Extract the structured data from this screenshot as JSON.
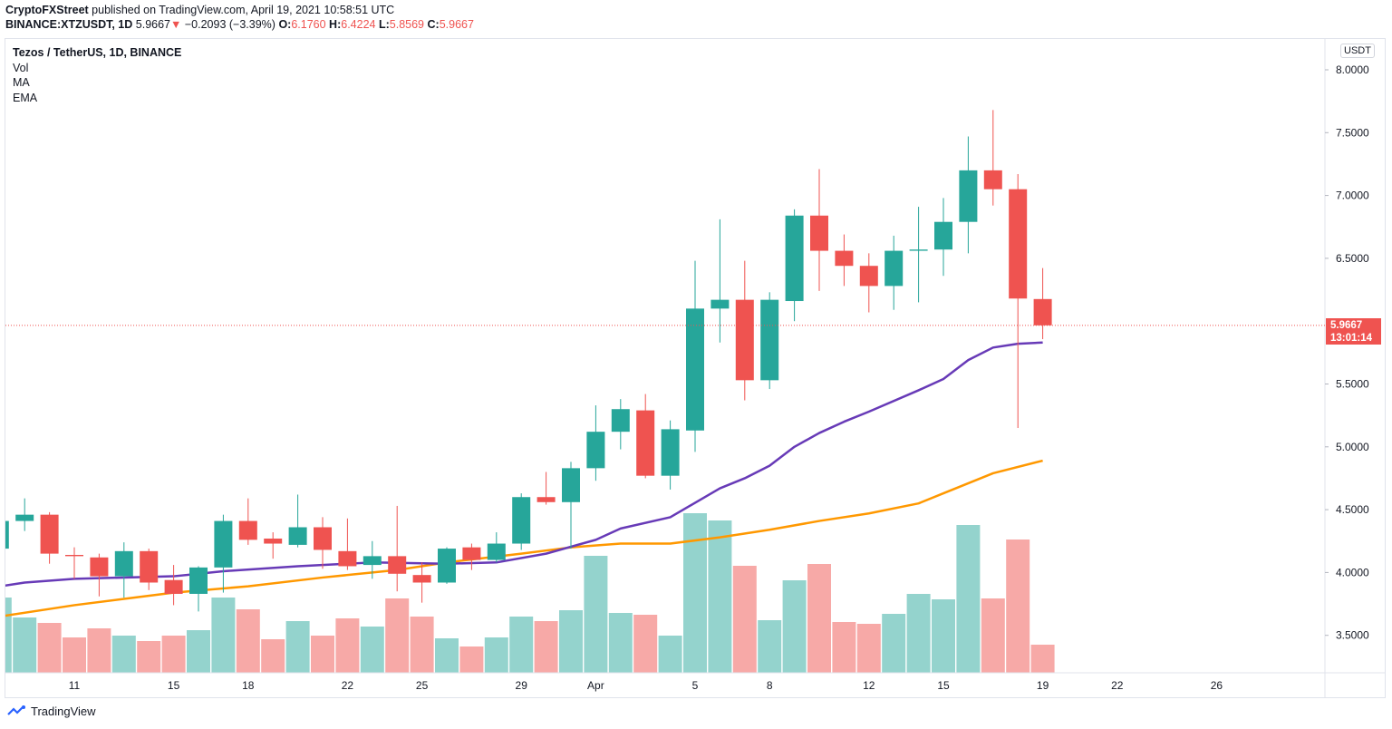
{
  "header": {
    "publisher": "CryptoFXStreet",
    "published_text": "published on TradingView.com, April 19, 2021 10:58:51 UTC",
    "symbol": "BINANCE:XTZUSDT, 1D",
    "last": "5.9667",
    "change": "−0.2093 (−3.39%)",
    "o_label": "O:",
    "o": "6.1760",
    "h_label": "H:",
    "h": "6.4224",
    "l_label": "L:",
    "l": "5.8569",
    "c_label": "C:",
    "c": "5.9667",
    "down_icon": "triangle-down-icon"
  },
  "legend": {
    "title": "Tezos / TetherUS, 1D, BINANCE",
    "vol": "Vol",
    "ma": "MA",
    "ema": "EMA"
  },
  "axis": {
    "currency": "USDT",
    "price_label": "5.9667",
    "countdown": "13:01:14"
  },
  "footer": {
    "brand": "TradingView"
  },
  "colors": {
    "up": "#26a69a",
    "down": "#ef5350",
    "vol_up": "#94d3cd",
    "vol_down": "#f7a9a7",
    "ma": "#673ab7",
    "ema": "#ff9800"
  },
  "chart_data": {
    "type": "candlestick",
    "ylim": [
      3.2,
      8.1
    ],
    "yticks": [
      "8.0000",
      "7.5000",
      "7.0000",
      "6.5000",
      "5.5000",
      "5.0000",
      "4.5000",
      "4.0000",
      "3.5000"
    ],
    "ytick_values": [
      8.0,
      7.5,
      7.0,
      6.5,
      5.5,
      5.0,
      4.5,
      4.0,
      3.5
    ],
    "xticks": [
      {
        "label": "11",
        "date": "Mar 11"
      },
      {
        "label": "15",
        "date": "Mar 15"
      },
      {
        "label": "18",
        "date": "Mar 18"
      },
      {
        "label": "22",
        "date": "Mar 22"
      },
      {
        "label": "25",
        "date": "Mar 25"
      },
      {
        "label": "29",
        "date": "Mar 29"
      },
      {
        "label": "Apr",
        "date": "Apr 1"
      },
      {
        "label": "5",
        "date": "Apr 5"
      },
      {
        "label": "8",
        "date": "Apr 8"
      },
      {
        "label": "12",
        "date": "Apr 12"
      },
      {
        "label": "15",
        "date": "Apr 15"
      },
      {
        "label": "19",
        "date": "Apr 19"
      },
      {
        "label": "22",
        "date": "Apr 22"
      },
      {
        "label": "26",
        "date": "Apr 26"
      }
    ],
    "candles": [
      {
        "date": "Mar 8",
        "o": 4.19,
        "h": 4.44,
        "l": 4.18,
        "c": 4.41,
        "vol": 83
      },
      {
        "date": "Mar 9",
        "o": 4.41,
        "h": 4.59,
        "l": 4.33,
        "c": 4.46,
        "vol": 61
      },
      {
        "date": "Mar 10",
        "o": 4.46,
        "h": 4.48,
        "l": 4.07,
        "c": 4.15,
        "vol": 55
      },
      {
        "date": "Mar 11",
        "o": 4.14,
        "h": 4.2,
        "l": 3.95,
        "c": 4.13,
        "vol": 39
      },
      {
        "date": "Mar 12",
        "o": 4.12,
        "h": 4.15,
        "l": 3.81,
        "c": 3.97,
        "vol": 49
      },
      {
        "date": "Mar 13",
        "o": 3.97,
        "h": 4.24,
        "l": 3.8,
        "c": 4.17,
        "vol": 41
      },
      {
        "date": "Mar 14",
        "o": 4.17,
        "h": 4.19,
        "l": 3.86,
        "c": 3.92,
        "vol": 35
      },
      {
        "date": "Mar 15",
        "o": 3.94,
        "h": 4.06,
        "l": 3.74,
        "c": 3.83,
        "vol": 41
      },
      {
        "date": "Mar 16",
        "o": 3.83,
        "h": 4.05,
        "l": 3.69,
        "c": 4.04,
        "vol": 47
      },
      {
        "date": "Mar 17",
        "o": 4.04,
        "h": 4.46,
        "l": 3.84,
        "c": 4.41,
        "vol": 83
      },
      {
        "date": "Mar 18",
        "o": 4.41,
        "h": 4.59,
        "l": 4.22,
        "c": 4.26,
        "vol": 70
      },
      {
        "date": "Mar 19",
        "o": 4.27,
        "h": 4.32,
        "l": 4.11,
        "c": 4.23,
        "vol": 37
      },
      {
        "date": "Mar 20",
        "o": 4.22,
        "h": 4.62,
        "l": 4.2,
        "c": 4.36,
        "vol": 57
      },
      {
        "date": "Mar 21",
        "o": 4.36,
        "h": 4.44,
        "l": 4.03,
        "c": 4.18,
        "vol": 41
      },
      {
        "date": "Mar 22",
        "o": 4.17,
        "h": 4.43,
        "l": 4.02,
        "c": 4.05,
        "vol": 60
      },
      {
        "date": "Mar 23",
        "o": 4.06,
        "h": 4.25,
        "l": 3.95,
        "c": 4.13,
        "vol": 51
      },
      {
        "date": "Mar 24",
        "o": 4.13,
        "h": 4.53,
        "l": 3.85,
        "c": 3.99,
        "vol": 82
      },
      {
        "date": "Mar 25",
        "o": 3.98,
        "h": 4.08,
        "l": 3.76,
        "c": 3.92,
        "vol": 62
      },
      {
        "date": "Mar 26",
        "o": 3.92,
        "h": 4.2,
        "l": 3.91,
        "c": 4.19,
        "vol": 38
      },
      {
        "date": "Mar 27",
        "o": 4.2,
        "h": 4.23,
        "l": 4.02,
        "c": 4.1,
        "vol": 29
      },
      {
        "date": "Mar 28",
        "o": 4.1,
        "h": 4.32,
        "l": 4.08,
        "c": 4.23,
        "vol": 39
      },
      {
        "date": "Mar 29",
        "o": 4.23,
        "h": 4.63,
        "l": 4.18,
        "c": 4.6,
        "vol": 62
      },
      {
        "date": "Mar 30",
        "o": 4.6,
        "h": 4.8,
        "l": 4.54,
        "c": 4.56,
        "vol": 57
      },
      {
        "date": "Mar 31",
        "o": 4.56,
        "h": 4.88,
        "l": 4.19,
        "c": 4.83,
        "vol": 69
      },
      {
        "date": "Apr 1",
        "o": 4.83,
        "h": 5.33,
        "l": 4.73,
        "c": 5.12,
        "vol": 129
      },
      {
        "date": "Apr 2",
        "o": 5.12,
        "h": 5.38,
        "l": 4.98,
        "c": 5.3,
        "vol": 66
      },
      {
        "date": "Apr 3",
        "o": 5.29,
        "h": 5.42,
        "l": 4.75,
        "c": 4.77,
        "vol": 64
      },
      {
        "date": "Apr 4",
        "o": 4.77,
        "h": 5.21,
        "l": 4.66,
        "c": 5.14,
        "vol": 41
      },
      {
        "date": "Apr 5",
        "o": 5.13,
        "h": 6.48,
        "l": 4.96,
        "c": 6.1,
        "vol": 176
      },
      {
        "date": "Apr 6",
        "o": 6.1,
        "h": 6.81,
        "l": 5.83,
        "c": 6.17,
        "vol": 168
      },
      {
        "date": "Apr 7",
        "o": 6.17,
        "h": 6.48,
        "l": 5.37,
        "c": 5.53,
        "vol": 118
      },
      {
        "date": "Apr 8",
        "o": 5.53,
        "h": 6.23,
        "l": 5.46,
        "c": 6.17,
        "vol": 58
      },
      {
        "date": "Apr 9",
        "o": 6.16,
        "h": 6.89,
        "l": 6.0,
        "c": 6.84,
        "vol": 102
      },
      {
        "date": "Apr 10",
        "o": 6.84,
        "h": 7.21,
        "l": 6.24,
        "c": 6.56,
        "vol": 120
      },
      {
        "date": "Apr 11",
        "o": 6.56,
        "h": 6.69,
        "l": 6.28,
        "c": 6.44,
        "vol": 56
      },
      {
        "date": "Apr 12",
        "o": 6.44,
        "h": 6.54,
        "l": 6.07,
        "c": 6.28,
        "vol": 54
      },
      {
        "date": "Apr 13",
        "o": 6.28,
        "h": 6.68,
        "l": 6.09,
        "c": 6.56,
        "vol": 65
      },
      {
        "date": "Apr 14",
        "o": 6.56,
        "h": 6.91,
        "l": 6.15,
        "c": 6.57,
        "vol": 87
      },
      {
        "date": "Apr 15",
        "o": 6.57,
        "h": 6.98,
        "l": 6.36,
        "c": 6.79,
        "vol": 81
      },
      {
        "date": "Apr 16",
        "o": 6.79,
        "h": 7.47,
        "l": 6.54,
        "c": 7.2,
        "vol": 163
      },
      {
        "date": "Apr 17",
        "o": 7.2,
        "h": 7.68,
        "l": 6.92,
        "c": 7.05,
        "vol": 82
      },
      {
        "date": "Apr 18",
        "o": 7.05,
        "h": 7.17,
        "l": 5.15,
        "c": 6.18,
        "vol": 147
      },
      {
        "date": "Apr 19",
        "o": 6.176,
        "h": 6.4224,
        "l": 5.8569,
        "c": 5.9667,
        "vol": 31
      }
    ],
    "ma": [
      [
        "Mar 8",
        3.89
      ],
      [
        "Mar 9",
        3.92
      ],
      [
        "Mar 11",
        3.95
      ],
      [
        "Mar 15",
        3.97
      ],
      [
        "Mar 17",
        4.01
      ],
      [
        "Mar 20",
        4.05
      ],
      [
        "Mar 23",
        4.08
      ],
      [
        "Mar 26",
        4.07
      ],
      [
        "Mar 28",
        4.08
      ],
      [
        "Mar 30",
        4.15
      ],
      [
        "Apr 1",
        4.26
      ],
      [
        "Apr 2",
        4.35
      ],
      [
        "Apr 4",
        4.44
      ],
      [
        "Apr 6",
        4.67
      ],
      [
        "Apr 7",
        4.75
      ],
      [
        "Apr 8",
        4.85
      ],
      [
        "Apr 9",
        5.0
      ],
      [
        "Apr 10",
        5.11
      ],
      [
        "Apr 11",
        5.2
      ],
      [
        "Apr 12",
        5.28
      ],
      [
        "Apr 14",
        5.45
      ],
      [
        "Apr 15",
        5.54
      ],
      [
        "Apr 16",
        5.69
      ],
      [
        "Apr 17",
        5.79
      ],
      [
        "Apr 18",
        5.82
      ],
      [
        "Apr 19",
        5.83
      ]
    ],
    "ema": [
      [
        "Mar 8",
        3.65
      ],
      [
        "Mar 11",
        3.74
      ],
      [
        "Mar 13",
        3.79
      ],
      [
        "Mar 15",
        3.84
      ],
      [
        "Mar 18",
        3.89
      ],
      [
        "Mar 21",
        3.96
      ],
      [
        "Mar 24",
        4.02
      ],
      [
        "Mar 26",
        4.08
      ],
      [
        "Mar 29",
        4.15
      ],
      [
        "Mar 31",
        4.2
      ],
      [
        "Apr 2",
        4.23
      ],
      [
        "Apr 4",
        4.23
      ],
      [
        "Apr 6",
        4.28
      ],
      [
        "Apr 8",
        4.34
      ],
      [
        "Apr 10",
        4.41
      ],
      [
        "Apr 12",
        4.47
      ],
      [
        "Apr 14",
        4.55
      ],
      [
        "Apr 15",
        4.63
      ],
      [
        "Apr 17",
        4.79
      ],
      [
        "Apr 19",
        4.89
      ]
    ],
    "last_price": 5.9667,
    "grid": false
  }
}
